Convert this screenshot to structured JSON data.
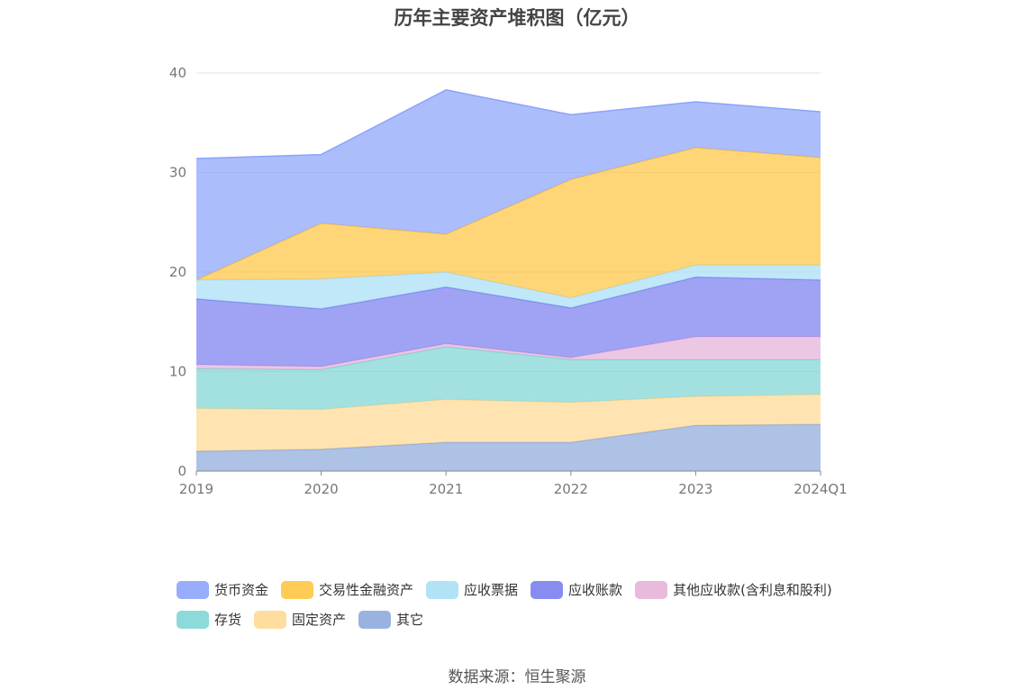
{
  "chart_data": {
    "type": "area",
    "stacked": true,
    "title": "历年主要资产堆积图（亿元）",
    "x": [
      "2019",
      "2020",
      "2021",
      "2022",
      "2023",
      "2024Q1"
    ],
    "ylim": [
      0,
      40
    ],
    "yticks": [
      "0",
      "10",
      "20",
      "30",
      "40"
    ],
    "grid": true,
    "legend_position": "bottom",
    "series": [
      {
        "name": "其它",
        "color": "#8faadc",
        "values": [
          2.0,
          2.2,
          2.9,
          2.9,
          4.6,
          4.7
        ]
      },
      {
        "name": "固定资产",
        "color": "#ffd993",
        "values": [
          4.3,
          4.0,
          4.3,
          4.0,
          2.9,
          3.0
        ]
      },
      {
        "name": "存货",
        "color": "#7fd6d6",
        "values": [
          4.0,
          4.0,
          5.3,
          4.3,
          3.7,
          3.5
        ]
      },
      {
        "name": "其他应收款(含利息和股利)",
        "color": "#e5b2d8",
        "values": [
          0.4,
          0.3,
          0.3,
          0.2,
          2.3,
          2.3
        ]
      },
      {
        "name": "应收账款",
        "color": "#7b7ff0",
        "values": [
          6.6,
          5.8,
          5.7,
          5.0,
          6.0,
          5.7
        ]
      },
      {
        "name": "应收票据",
        "color": "#a9dff5",
        "values": [
          1.9,
          3.0,
          1.5,
          1.0,
          1.2,
          1.5
        ]
      },
      {
        "name": "交易性金融资产",
        "color": "#fec542",
        "values": [
          0.0,
          5.6,
          3.8,
          11.9,
          11.8,
          10.8
        ]
      },
      {
        "name": "货币资金",
        "color": "#8ca3fb",
        "values": [
          12.2,
          6.9,
          14.5,
          6.5,
          4.6,
          4.6
        ]
      }
    ]
  },
  "legend_rows": [
    [
      "货币资金",
      "交易性金融资产",
      "应收票据",
      "应收账款",
      "其他应收款(含利息和股利)"
    ],
    [
      "存货",
      "固定资产",
      "其它"
    ]
  ],
  "source": "数据来源：恒生聚源"
}
